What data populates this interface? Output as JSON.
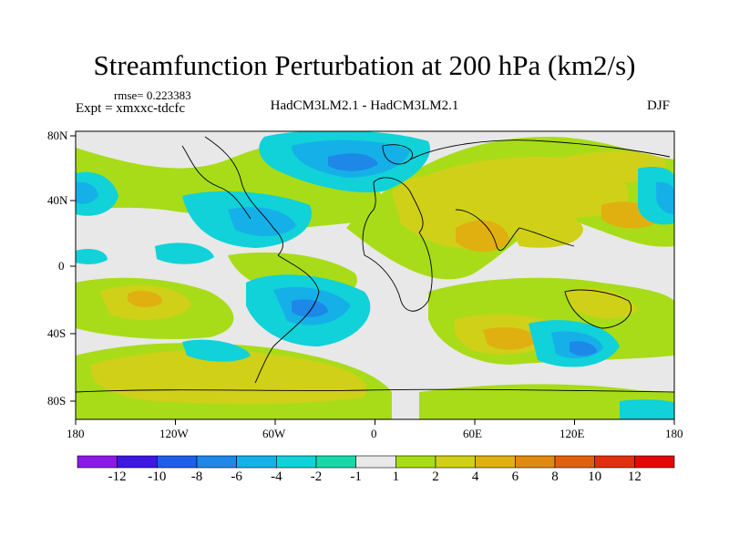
{
  "title": "Streamfunction Perturbation at 200 hPa (km2/s)",
  "rmse_label": "rmse= 0.223383",
  "expt_label": "Expt = xmxxc-tdcfc",
  "models_label": "HadCM3LM2.1 - HadCM3LM2.1",
  "season_label": "DJF",
  "lat_labels": [
    "80N",
    "40N",
    "0",
    "40S",
    "80S"
  ],
  "lon_labels": [
    "180",
    "120W",
    "60W",
    "0",
    "60E",
    "120E",
    "180"
  ],
  "colorbar": {
    "colors": [
      "#8b1ae8",
      "#3c18e0",
      "#1f5ee8",
      "#1e88e8",
      "#16b0e8",
      "#10d2d8",
      "#18d8a8",
      "#e8e8e8",
      "#a8dc18",
      "#d0d018",
      "#e0b010",
      "#e08a10",
      "#e06010",
      "#e03010",
      "#e00808"
    ],
    "labels": [
      "-12",
      "-10",
      "-8",
      "-6",
      "-4",
      "-2",
      "-1",
      "1",
      "2",
      "4",
      "6",
      "8",
      "10",
      "12"
    ]
  }
}
